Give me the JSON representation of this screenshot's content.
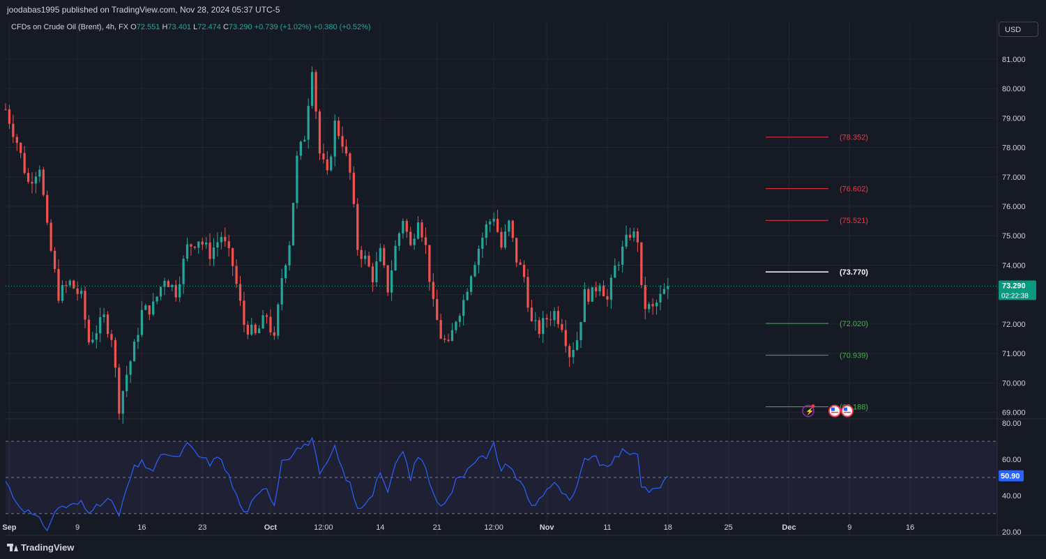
{
  "publisher": "joodabas1995 published on TradingView.com, Nov 28, 2024 05:37 UTC-5",
  "legend": {
    "symbol": "CFDs on Crude Oil (Brent), 4h, FX",
    "o_label": "O",
    "o_value": "72.551",
    "h_label": "H",
    "h_value": "73.401",
    "l_label": "L",
    "l_value": "72.474",
    "c_label": "C",
    "c_value": "73.290",
    "change": "+0.739 (+1.02%)",
    "change2": "+0.380 (+0.52%)"
  },
  "currency_button": "USD",
  "footer_logo": "TradingView",
  "colors": {
    "background": "#161a25",
    "up": "#26a69a",
    "down": "#ef5350",
    "rsi_line": "#2962ff",
    "level_red": "#f23645",
    "level_green": "#4caf50",
    "level_white": "#ffffff",
    "price_badge": "#089981"
  },
  "chart_data": {
    "type": "candlestick",
    "x_tick_labels": [
      "Sep",
      "9",
      "16",
      "23",
      "Oct",
      "12:00",
      "14",
      "21",
      "12:00",
      "Nov",
      "11",
      "18",
      "25",
      "Dec",
      "9",
      "16"
    ],
    "y_tick_labels": [
      "81.000",
      "80.000",
      "79.000",
      "78.000",
      "77.000",
      "76.000",
      "75.000",
      "74.000",
      "73.000",
      "72.000",
      "71.000",
      "70.000",
      "69.000"
    ],
    "ylim": [
      68.8,
      82.3
    ],
    "current_price": "73.290",
    "countdown": "02:22:38",
    "levels": [
      {
        "label": "(78.352)",
        "value": 78.352,
        "color": "red"
      },
      {
        "label": "(76.602)",
        "value": 76.602,
        "color": "red"
      },
      {
        "label": "(75.521)",
        "value": 75.521,
        "color": "red"
      },
      {
        "label": "(73.770)",
        "value": 73.77,
        "color": "white"
      },
      {
        "label": "(72.020)",
        "value": 72.02,
        "color": "green"
      },
      {
        "label": "(70.939)",
        "value": 70.939,
        "color": "green"
      },
      {
        "label": "(69.188)",
        "value": 69.188,
        "color": "green"
      }
    ],
    "price_path": [
      [
        0,
        79.3
      ],
      [
        3,
        78.2
      ],
      [
        6,
        76.8
      ],
      [
        9,
        77.4
      ],
      [
        11,
        75.2
      ],
      [
        14,
        73.0
      ],
      [
        17,
        73.4
      ],
      [
        20,
        72.9
      ],
      [
        22,
        71.4
      ],
      [
        24,
        71.8
      ],
      [
        26,
        72.2
      ],
      [
        28,
        71.6
      ],
      [
        30,
        69.2
      ],
      [
        32,
        70.3
      ],
      [
        34,
        71.2
      ],
      [
        36,
        72.4
      ],
      [
        39,
        72.6
      ],
      [
        42,
        73.6
      ],
      [
        45,
        73.1
      ],
      [
        48,
        74.6
      ],
      [
        51,
        74.9
      ],
      [
        54,
        74.4
      ],
      [
        57,
        75.0
      ],
      [
        60,
        74.0
      ],
      [
        63,
        72.0
      ],
      [
        66,
        71.6
      ],
      [
        69,
        72.3
      ],
      [
        71,
        71.4
      ],
      [
        73,
        73.6
      ],
      [
        75,
        74.8
      ],
      [
        77,
        77.6
      ],
      [
        79,
        78.4
      ],
      [
        81,
        80.8
      ],
      [
        83,
        77.8
      ],
      [
        85,
        77.0
      ],
      [
        87,
        78.8
      ],
      [
        89,
        78.2
      ],
      [
        91,
        77.1
      ],
      [
        93,
        74.6
      ],
      [
        95,
        74.2
      ],
      [
        97,
        73.6
      ],
      [
        99,
        74.4
      ],
      [
        101,
        73.2
      ],
      [
        103,
        74.6
      ],
      [
        105,
        75.6
      ],
      [
        107,
        74.6
      ],
      [
        109,
        75.7
      ],
      [
        111,
        74.6
      ],
      [
        113,
        72.6
      ],
      [
        115,
        71.6
      ],
      [
        117,
        71.2
      ],
      [
        119,
        72.2
      ],
      [
        121,
        72.8
      ],
      [
        123,
        73.8
      ],
      [
        125,
        74.6
      ],
      [
        127,
        75.3
      ],
      [
        129,
        75.7
      ],
      [
        131,
        74.6
      ],
      [
        133,
        75.4
      ],
      [
        135,
        74.2
      ],
      [
        137,
        73.6
      ],
      [
        139,
        72.0
      ],
      [
        141,
        71.8
      ],
      [
        143,
        72.2
      ],
      [
        145,
        72.4
      ],
      [
        147,
        72.0
      ],
      [
        149,
        71.0
      ],
      [
        151,
        71.5
      ],
      [
        153,
        73.0
      ],
      [
        155,
        73.0
      ],
      [
        157,
        73.5
      ],
      [
        159,
        72.8
      ],
      [
        161,
        73.9
      ],
      [
        163,
        74.5
      ],
      [
        165,
        75.1
      ],
      [
        167,
        74.9
      ],
      [
        168,
        73.1
      ],
      [
        169,
        72.6
      ],
      [
        171,
        72.5
      ],
      [
        173,
        72.9
      ],
      [
        175,
        73.29
      ]
    ],
    "price_x_range": [
      0,
      175
    ],
    "rsi": {
      "current": "50.90",
      "y_tick_labels": [
        "80.00",
        "60.00",
        "40.00",
        "20.00"
      ],
      "ylim": [
        18,
        82
      ],
      "band": [
        30,
        70
      ],
      "mid": 50,
      "path": [
        [
          0,
          48
        ],
        [
          3,
          36
        ],
        [
          6,
          31
        ],
        [
          9,
          26
        ],
        [
          11,
          22
        ],
        [
          14,
          34
        ],
        [
          17,
          34
        ],
        [
          20,
          36
        ],
        [
          22,
          30
        ],
        [
          24,
          37
        ],
        [
          26,
          35
        ],
        [
          28,
          38
        ],
        [
          30,
          28
        ],
        [
          32,
          44
        ],
        [
          34,
          55
        ],
        [
          36,
          58
        ],
        [
          39,
          54
        ],
        [
          42,
          64
        ],
        [
          45,
          60
        ],
        [
          48,
          68
        ],
        [
          51,
          62
        ],
        [
          54,
          58
        ],
        [
          57,
          61
        ],
        [
          60,
          45
        ],
        [
          63,
          30
        ],
        [
          66,
          38
        ],
        [
          69,
          45
        ],
        [
          71,
          35
        ],
        [
          73,
          60
        ],
        [
          75,
          62
        ],
        [
          77,
          66
        ],
        [
          79,
          67
        ],
        [
          81,
          72
        ],
        [
          83,
          50
        ],
        [
          85,
          58
        ],
        [
          87,
          66
        ],
        [
          89,
          54
        ],
        [
          91,
          46
        ],
        [
          93,
          32
        ],
        [
          95,
          36
        ],
        [
          97,
          42
        ],
        [
          99,
          54
        ],
        [
          101,
          40
        ],
        [
          103,
          58
        ],
        [
          105,
          64
        ],
        [
          107,
          50
        ],
        [
          109,
          62
        ],
        [
          111,
          56
        ],
        [
          113,
          40
        ],
        [
          115,
          36
        ],
        [
          117,
          38
        ],
        [
          119,
          48
        ],
        [
          121,
          52
        ],
        [
          123,
          58
        ],
        [
          125,
          62
        ],
        [
          127,
          60
        ],
        [
          129,
          68
        ],
        [
          131,
          54
        ],
        [
          133,
          58
        ],
        [
          135,
          50
        ],
        [
          137,
          44
        ],
        [
          139,
          34
        ],
        [
          141,
          38
        ],
        [
          143,
          44
        ],
        [
          145,
          46
        ],
        [
          147,
          42
        ],
        [
          149,
          36
        ],
        [
          151,
          44
        ],
        [
          153,
          60
        ],
        [
          155,
          62
        ],
        [
          157,
          58
        ],
        [
          159,
          54
        ],
        [
          161,
          62
        ],
        [
          163,
          64
        ],
        [
          165,
          62
        ],
        [
          167,
          64
        ],
        [
          168,
          46
        ],
        [
          169,
          44
        ],
        [
          171,
          42
        ],
        [
          173,
          46
        ],
        [
          175,
          50.9
        ]
      ]
    }
  }
}
